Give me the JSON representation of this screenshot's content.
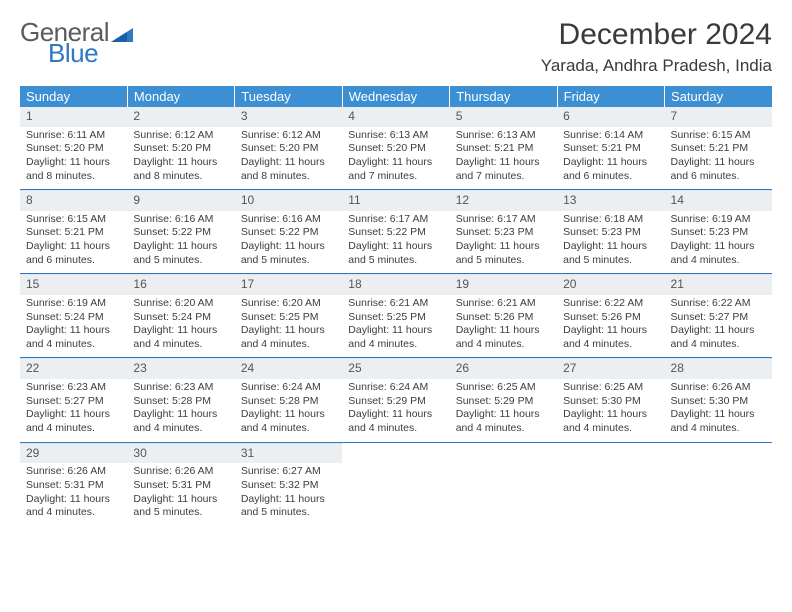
{
  "brand": {
    "word1": "General",
    "word2": "Blue"
  },
  "title": {
    "month": "December 2024",
    "location": "Yarada, Andhra Pradesh, India"
  },
  "colors": {
    "header_bg": "#3b8fd2",
    "header_text": "#ffffff",
    "daynum_bg": "#eceff1",
    "separator": "#2f78c3",
    "brand_gray": "#5b5b5b",
    "brand_blue": "#2f78c3",
    "text": "#3a3a3a",
    "background": "#ffffff"
  },
  "typography": {
    "month_fontsize": 30,
    "location_fontsize": 17,
    "weekday_fontsize": 13,
    "daynum_fontsize": 12,
    "body_fontsize": 10.5
  },
  "weekdays": [
    "Sunday",
    "Monday",
    "Tuesday",
    "Wednesday",
    "Thursday",
    "Friday",
    "Saturday"
  ],
  "weeks": [
    [
      {
        "n": "1",
        "sr": "Sunrise: 6:11 AM",
        "ss": "Sunset: 5:20 PM",
        "d1": "Daylight: 11 hours",
        "d2": "and 8 minutes."
      },
      {
        "n": "2",
        "sr": "Sunrise: 6:12 AM",
        "ss": "Sunset: 5:20 PM",
        "d1": "Daylight: 11 hours",
        "d2": "and 8 minutes."
      },
      {
        "n": "3",
        "sr": "Sunrise: 6:12 AM",
        "ss": "Sunset: 5:20 PM",
        "d1": "Daylight: 11 hours",
        "d2": "and 8 minutes."
      },
      {
        "n": "4",
        "sr": "Sunrise: 6:13 AM",
        "ss": "Sunset: 5:20 PM",
        "d1": "Daylight: 11 hours",
        "d2": "and 7 minutes."
      },
      {
        "n": "5",
        "sr": "Sunrise: 6:13 AM",
        "ss": "Sunset: 5:21 PM",
        "d1": "Daylight: 11 hours",
        "d2": "and 7 minutes."
      },
      {
        "n": "6",
        "sr": "Sunrise: 6:14 AM",
        "ss": "Sunset: 5:21 PM",
        "d1": "Daylight: 11 hours",
        "d2": "and 6 minutes."
      },
      {
        "n": "7",
        "sr": "Sunrise: 6:15 AM",
        "ss": "Sunset: 5:21 PM",
        "d1": "Daylight: 11 hours",
        "d2": "and 6 minutes."
      }
    ],
    [
      {
        "n": "8",
        "sr": "Sunrise: 6:15 AM",
        "ss": "Sunset: 5:21 PM",
        "d1": "Daylight: 11 hours",
        "d2": "and 6 minutes."
      },
      {
        "n": "9",
        "sr": "Sunrise: 6:16 AM",
        "ss": "Sunset: 5:22 PM",
        "d1": "Daylight: 11 hours",
        "d2": "and 5 minutes."
      },
      {
        "n": "10",
        "sr": "Sunrise: 6:16 AM",
        "ss": "Sunset: 5:22 PM",
        "d1": "Daylight: 11 hours",
        "d2": "and 5 minutes."
      },
      {
        "n": "11",
        "sr": "Sunrise: 6:17 AM",
        "ss": "Sunset: 5:22 PM",
        "d1": "Daylight: 11 hours",
        "d2": "and 5 minutes."
      },
      {
        "n": "12",
        "sr": "Sunrise: 6:17 AM",
        "ss": "Sunset: 5:23 PM",
        "d1": "Daylight: 11 hours",
        "d2": "and 5 minutes."
      },
      {
        "n": "13",
        "sr": "Sunrise: 6:18 AM",
        "ss": "Sunset: 5:23 PM",
        "d1": "Daylight: 11 hours",
        "d2": "and 5 minutes."
      },
      {
        "n": "14",
        "sr": "Sunrise: 6:19 AM",
        "ss": "Sunset: 5:23 PM",
        "d1": "Daylight: 11 hours",
        "d2": "and 4 minutes."
      }
    ],
    [
      {
        "n": "15",
        "sr": "Sunrise: 6:19 AM",
        "ss": "Sunset: 5:24 PM",
        "d1": "Daylight: 11 hours",
        "d2": "and 4 minutes."
      },
      {
        "n": "16",
        "sr": "Sunrise: 6:20 AM",
        "ss": "Sunset: 5:24 PM",
        "d1": "Daylight: 11 hours",
        "d2": "and 4 minutes."
      },
      {
        "n": "17",
        "sr": "Sunrise: 6:20 AM",
        "ss": "Sunset: 5:25 PM",
        "d1": "Daylight: 11 hours",
        "d2": "and 4 minutes."
      },
      {
        "n": "18",
        "sr": "Sunrise: 6:21 AM",
        "ss": "Sunset: 5:25 PM",
        "d1": "Daylight: 11 hours",
        "d2": "and 4 minutes."
      },
      {
        "n": "19",
        "sr": "Sunrise: 6:21 AM",
        "ss": "Sunset: 5:26 PM",
        "d1": "Daylight: 11 hours",
        "d2": "and 4 minutes."
      },
      {
        "n": "20",
        "sr": "Sunrise: 6:22 AM",
        "ss": "Sunset: 5:26 PM",
        "d1": "Daylight: 11 hours",
        "d2": "and 4 minutes."
      },
      {
        "n": "21",
        "sr": "Sunrise: 6:22 AM",
        "ss": "Sunset: 5:27 PM",
        "d1": "Daylight: 11 hours",
        "d2": "and 4 minutes."
      }
    ],
    [
      {
        "n": "22",
        "sr": "Sunrise: 6:23 AM",
        "ss": "Sunset: 5:27 PM",
        "d1": "Daylight: 11 hours",
        "d2": "and 4 minutes."
      },
      {
        "n": "23",
        "sr": "Sunrise: 6:23 AM",
        "ss": "Sunset: 5:28 PM",
        "d1": "Daylight: 11 hours",
        "d2": "and 4 minutes."
      },
      {
        "n": "24",
        "sr": "Sunrise: 6:24 AM",
        "ss": "Sunset: 5:28 PM",
        "d1": "Daylight: 11 hours",
        "d2": "and 4 minutes."
      },
      {
        "n": "25",
        "sr": "Sunrise: 6:24 AM",
        "ss": "Sunset: 5:29 PM",
        "d1": "Daylight: 11 hours",
        "d2": "and 4 minutes."
      },
      {
        "n": "26",
        "sr": "Sunrise: 6:25 AM",
        "ss": "Sunset: 5:29 PM",
        "d1": "Daylight: 11 hours",
        "d2": "and 4 minutes."
      },
      {
        "n": "27",
        "sr": "Sunrise: 6:25 AM",
        "ss": "Sunset: 5:30 PM",
        "d1": "Daylight: 11 hours",
        "d2": "and 4 minutes."
      },
      {
        "n": "28",
        "sr": "Sunrise: 6:26 AM",
        "ss": "Sunset: 5:30 PM",
        "d1": "Daylight: 11 hours",
        "d2": "and 4 minutes."
      }
    ],
    [
      {
        "n": "29",
        "sr": "Sunrise: 6:26 AM",
        "ss": "Sunset: 5:31 PM",
        "d1": "Daylight: 11 hours",
        "d2": "and 4 minutes."
      },
      {
        "n": "30",
        "sr": "Sunrise: 6:26 AM",
        "ss": "Sunset: 5:31 PM",
        "d1": "Daylight: 11 hours",
        "d2": "and 5 minutes."
      },
      {
        "n": "31",
        "sr": "Sunrise: 6:27 AM",
        "ss": "Sunset: 5:32 PM",
        "d1": "Daylight: 11 hours",
        "d2": "and 5 minutes."
      },
      null,
      null,
      null,
      null
    ]
  ]
}
